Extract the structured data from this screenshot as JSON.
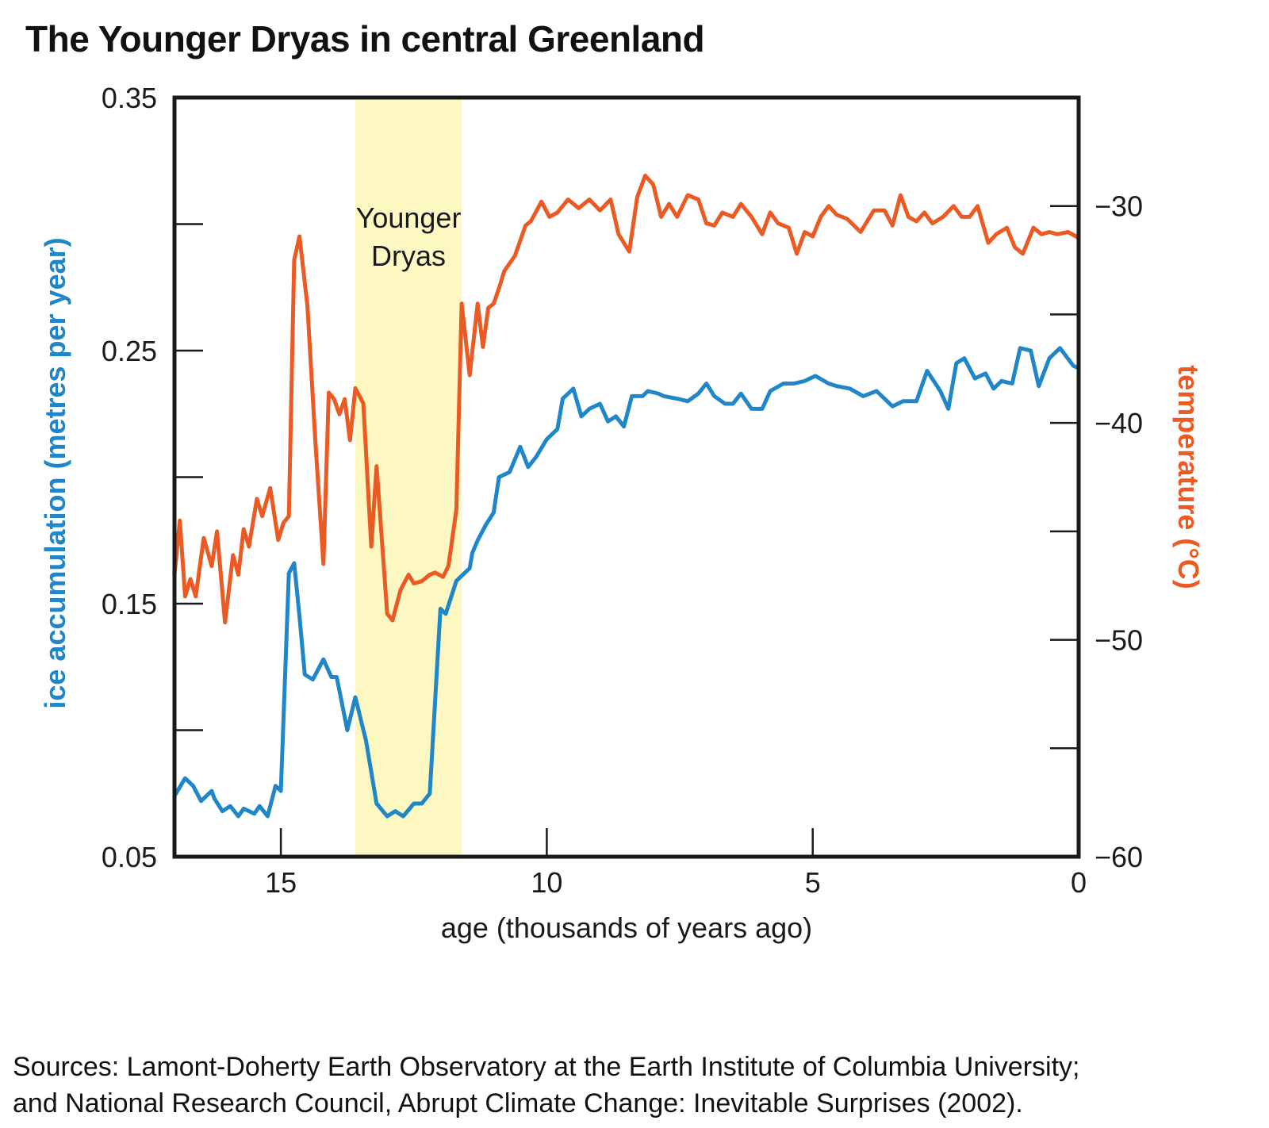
{
  "title": "The Younger Dryas in central Greenland",
  "sources": [
    "Sources: Lamont-Doherty Earth Observatory at the Earth Institute of Columbia University;",
    "and National Research Council, Abrupt Climate Change: Inevitable Surprises (2002)."
  ],
  "colors": {
    "accumulation": "#1f86c8",
    "temperature": "#ec5a24",
    "band": "#fdf8c2",
    "axis": "#1a1a1a"
  },
  "chart_data": {
    "type": "line",
    "title": "The Younger Dryas in central Greenland",
    "xlabel": "age (thousands of years ago)",
    "ylabel_left": "ice accumulation (metres per year)",
    "ylabel_right": "temperature (°C)",
    "xlim": [
      17,
      0
    ],
    "ylim_left": [
      0.05,
      0.35
    ],
    "ylim_right": [
      -60,
      -25
    ],
    "x_ticks": [
      {
        "value": 15,
        "label": "15"
      },
      {
        "value": 10,
        "label": "10"
      },
      {
        "value": 5,
        "label": "5"
      },
      {
        "value": 0,
        "label": "0"
      }
    ],
    "y_left_ticks": [
      {
        "value": 0.35,
        "label": "0.35"
      },
      {
        "value": 0.25,
        "label": "0.25"
      },
      {
        "value": 0.15,
        "label": "0.15"
      },
      {
        "value": 0.05,
        "label": "0.05"
      }
    ],
    "y_left_minor_ticks": [
      0.3,
      0.2,
      0.1
    ],
    "y_right_ticks": [
      {
        "value": -30,
        "label": "−30"
      },
      {
        "value": -40,
        "label": "−40"
      },
      {
        "value": -50,
        "label": "−50"
      },
      {
        "value": -60,
        "label": "−60"
      }
    ],
    "y_right_minor_ticks": [
      -35,
      -45,
      -55
    ],
    "grid": false,
    "shaded_region": {
      "x": [
        13.6,
        11.6
      ],
      "label": [
        "Younger",
        "Dryas"
      ]
    },
    "series": [
      {
        "name": "ice accumulation (metres per year)",
        "axis": "left",
        "color": "#1f86c8",
        "x": [
          17.0,
          16.8,
          16.65,
          16.5,
          16.3,
          16.25,
          16.1,
          15.95,
          15.8,
          15.7,
          15.5,
          15.4,
          15.25,
          15.1,
          15.0,
          14.85,
          14.75,
          14.65,
          14.55,
          14.4,
          14.2,
          14.05,
          13.95,
          13.75,
          13.6,
          13.4,
          13.2,
          13.0,
          12.85,
          12.7,
          12.5,
          12.35,
          12.2,
          12.0,
          11.9,
          11.7,
          11.6,
          11.45,
          11.4,
          11.3,
          11.15,
          11.0,
          10.9,
          10.7,
          10.5,
          10.35,
          10.2,
          10.0,
          9.8,
          9.7,
          9.5,
          9.35,
          9.2,
          9.0,
          8.85,
          8.7,
          8.55,
          8.4,
          8.2,
          8.1,
          7.9,
          7.8,
          7.55,
          7.35,
          7.15,
          7.0,
          6.85,
          6.65,
          6.5,
          6.35,
          6.15,
          5.95,
          5.8,
          5.55,
          5.35,
          5.15,
          4.95,
          4.7,
          4.55,
          4.3,
          4.05,
          3.8,
          3.5,
          3.3,
          3.05,
          2.85,
          2.6,
          2.45,
          2.3,
          2.15,
          1.95,
          1.75,
          1.6,
          1.45,
          1.25,
          1.1,
          0.9,
          0.75,
          0.55,
          0.35,
          0.1,
          0.0
        ],
        "values": [
          0.074,
          0.081,
          0.078,
          0.072,
          0.076,
          0.073,
          0.068,
          0.07,
          0.066,
          0.069,
          0.067,
          0.07,
          0.066,
          0.078,
          0.076,
          0.162,
          0.166,
          0.145,
          0.122,
          0.12,
          0.128,
          0.121,
          0.121,
          0.1,
          0.113,
          0.096,
          0.071,
          0.066,
          0.068,
          0.066,
          0.071,
          0.071,
          0.075,
          0.148,
          0.146,
          0.159,
          0.161,
          0.164,
          0.17,
          0.175,
          0.181,
          0.186,
          0.2,
          0.202,
          0.212,
          0.204,
          0.208,
          0.215,
          0.219,
          0.231,
          0.235,
          0.224,
          0.227,
          0.229,
          0.222,
          0.224,
          0.22,
          0.232,
          0.232,
          0.234,
          0.233,
          0.232,
          0.231,
          0.23,
          0.233,
          0.237,
          0.232,
          0.229,
          0.229,
          0.233,
          0.227,
          0.227,
          0.234,
          0.237,
          0.237,
          0.238,
          0.24,
          0.237,
          0.236,
          0.235,
          0.232,
          0.234,
          0.228,
          0.23,
          0.23,
          0.242,
          0.234,
          0.227,
          0.245,
          0.247,
          0.239,
          0.241,
          0.235,
          0.238,
          0.237,
          0.251,
          0.25,
          0.236,
          0.247,
          0.251,
          0.244,
          0.243
        ]
      },
      {
        "name": "temperature (°C)",
        "axis": "right",
        "color": "#ec5a24",
        "x": [
          17.0,
          16.9,
          16.8,
          16.7,
          16.6,
          16.45,
          16.3,
          16.2,
          16.05,
          15.9,
          15.8,
          15.7,
          15.6,
          15.45,
          15.35,
          15.2,
          15.05,
          14.95,
          14.85,
          14.75,
          14.65,
          14.5,
          14.35,
          14.2,
          14.1,
          14.0,
          13.9,
          13.8,
          13.7,
          13.6,
          13.45,
          13.3,
          13.2,
          13.0,
          12.9,
          12.75,
          12.6,
          12.5,
          12.35,
          12.2,
          12.1,
          11.95,
          11.85,
          11.7,
          11.6,
          11.45,
          11.3,
          11.2,
          11.1,
          11.0,
          10.9,
          10.8,
          10.6,
          10.4,
          10.3,
          10.1,
          9.95,
          9.8,
          9.6,
          9.4,
          9.2,
          9.0,
          8.8,
          8.65,
          8.45,
          8.3,
          8.15,
          8.0,
          7.85,
          7.7,
          7.55,
          7.35,
          7.15,
          7.0,
          6.85,
          6.7,
          6.5,
          6.35,
          6.15,
          5.95,
          5.8,
          5.65,
          5.45,
          5.3,
          5.15,
          5.0,
          4.85,
          4.7,
          4.55,
          4.35,
          4.1,
          3.85,
          3.65,
          3.5,
          3.35,
          3.2,
          3.05,
          2.9,
          2.75,
          2.55,
          2.35,
          2.2,
          2.05,
          1.9,
          1.7,
          1.55,
          1.35,
          1.2,
          1.05,
          0.85,
          0.7,
          0.55,
          0.4,
          0.2,
          0.05,
          0.0
        ],
        "values": [
          -47.0,
          -44.5,
          -48.0,
          -47.2,
          -48.0,
          -45.3,
          -46.6,
          -45.0,
          -49.2,
          -46.1,
          -47.0,
          -44.9,
          -45.7,
          -43.5,
          -44.3,
          -43.0,
          -45.4,
          -44.6,
          -44.3,
          -32.5,
          -31.4,
          -34.6,
          -40.9,
          -46.5,
          -38.6,
          -38.9,
          -39.6,
          -38.9,
          -40.8,
          -38.4,
          -39.1,
          -45.7,
          -42.0,
          -48.8,
          -49.1,
          -47.7,
          -47.0,
          -47.4,
          -47.3,
          -47.0,
          -46.9,
          -47.1,
          -46.6,
          -44.0,
          -34.5,
          -37.8,
          -34.5,
          -36.5,
          -34.7,
          -34.5,
          -33.8,
          -33.0,
          -32.3,
          -30.9,
          -30.7,
          -29.8,
          -30.5,
          -30.3,
          -29.7,
          -30.1,
          -29.7,
          -30.2,
          -29.7,
          -31.3,
          -32.1,
          -29.6,
          -28.6,
          -29.0,
          -30.5,
          -29.9,
          -30.5,
          -29.5,
          -29.7,
          -30.8,
          -30.9,
          -30.3,
          -30.5,
          -29.9,
          -30.5,
          -31.3,
          -30.3,
          -30.8,
          -31.0,
          -32.2,
          -31.2,
          -31.4,
          -30.5,
          -30.0,
          -30.4,
          -30.6,
          -31.2,
          -30.2,
          -30.2,
          -30.9,
          -29.5,
          -30.5,
          -30.7,
          -30.3,
          -30.8,
          -30.5,
          -30.0,
          -30.5,
          -30.5,
          -30.0,
          -31.7,
          -31.3,
          -31.0,
          -31.9,
          -32.2,
          -31.0,
          -31.3,
          -31.2,
          -31.3,
          -31.2,
          -31.4,
          -31.5
        ]
      }
    ]
  }
}
